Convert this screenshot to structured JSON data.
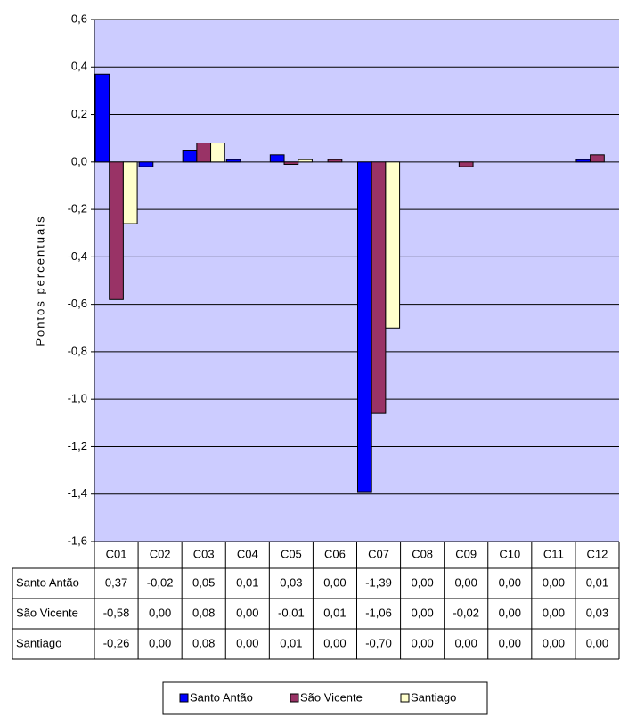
{
  "chart_data": {
    "type": "bar",
    "y_label": "Pontos percentuais",
    "categories": [
      "C01",
      "C02",
      "C03",
      "C04",
      "C05",
      "C06",
      "C07",
      "C08",
      "C09",
      "C10",
      "C11",
      "C12"
    ],
    "series": [
      {
        "name": "Santo Antão",
        "color": "#0000FF",
        "values": [
          0.37,
          -0.02,
          0.05,
          0.01,
          0.03,
          0.0,
          -1.39,
          0.0,
          0.0,
          0.0,
          0.0,
          0.01
        ],
        "value_labels": [
          "0,37",
          "-0,02",
          "0,05",
          "0,01",
          "0,03",
          "0,00",
          "-1,39",
          "0,00",
          "0,00",
          "0,00",
          "0,00",
          "0,01"
        ]
      },
      {
        "name": "São Vicente",
        "color": "#993366",
        "values": [
          -0.58,
          0.0,
          0.08,
          0.0,
          -0.01,
          0.01,
          -1.06,
          0.0,
          -0.02,
          0.0,
          0.0,
          0.03
        ],
        "value_labels": [
          "-0,58",
          "0,00",
          "0,08",
          "0,00",
          "-0,01",
          "0,01",
          "-1,06",
          "0,00",
          "-0,02",
          "0,00",
          "0,00",
          "0,03"
        ]
      },
      {
        "name": "Santiago",
        "color": "#FFFFCC",
        "values": [
          -0.26,
          0.0,
          0.08,
          0.0,
          0.01,
          0.0,
          -0.7,
          0.0,
          0.0,
          0.0,
          0.0,
          0.0
        ],
        "value_labels": [
          "-0,26",
          "0,00",
          "0,08",
          "0,00",
          "0,01",
          "0,00",
          "-0,70",
          "0,00",
          "0,00",
          "0,00",
          "0,00",
          "0,00"
        ]
      }
    ],
    "ylim": [
      -1.6,
      0.6
    ],
    "yticks": [
      {
        "value": -1.6,
        "label": "-1,6"
      },
      {
        "value": -1.4,
        "label": "-1,4"
      },
      {
        "value": -1.2,
        "label": "-1,2"
      },
      {
        "value": -1.0,
        "label": "-1,0"
      },
      {
        "value": -0.8,
        "label": "-0,8"
      },
      {
        "value": -0.6,
        "label": "-0,6"
      },
      {
        "value": -0.4,
        "label": "-0,4"
      },
      {
        "value": -0.2,
        "label": "-0,2"
      },
      {
        "value": 0.0,
        "label": "0,0"
      },
      {
        "value": 0.2,
        "label": "0,2"
      },
      {
        "value": 0.4,
        "label": "0,4"
      },
      {
        "value": 0.6,
        "label": "0,6"
      }
    ],
    "grid": true,
    "background": "#CCCCFF",
    "legend": "bottom"
  }
}
